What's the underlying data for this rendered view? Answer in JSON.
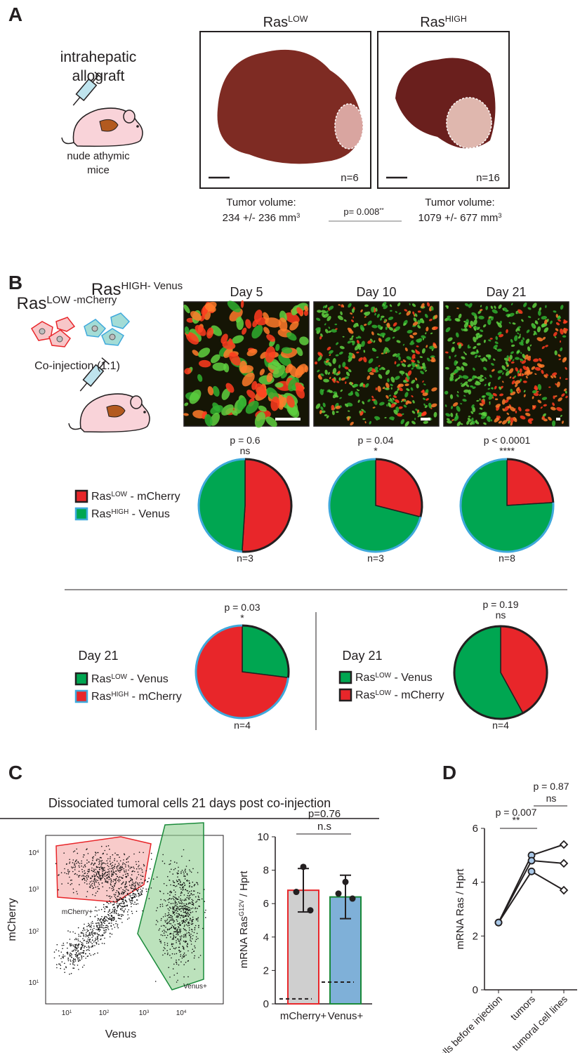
{
  "panel_labels": {
    "a": "A",
    "b": "B",
    "c": "C",
    "d": "D"
  },
  "panel_a": {
    "model": [
      "intrahepatic",
      "allograft"
    ],
    "mice": [
      "nude athymic",
      "mice"
    ],
    "groups": [
      {
        "name": "Ras",
        "sup": "LOW",
        "n": "n=6",
        "volume": "234 +/- 236 mm",
        "unit_sup": "3"
      },
      {
        "name": "Ras",
        "sup": "HIGH",
        "n": "n=16",
        "volume": "1079 +/- 677 mm",
        "unit_sup": "3"
      }
    ],
    "volume_label": "Tumor volume:",
    "p": "p= 0.008",
    "sig": "**"
  },
  "panel_b": {
    "cells": [
      {
        "name": "Ras",
        "sup": "LOW -mCherry"
      },
      {
        "name": "Ras",
        "sup": "HIGH- Venus"
      }
    ],
    "coinjection": "Co-injection (1:1)",
    "days": [
      "Day 5",
      "Day 10",
      "Day 21"
    ],
    "legend": [
      {
        "name": "Ras",
        "sup": "LOW",
        "suffix": " - mCherry",
        "color": "#e8262a",
        "outline": "#231f20"
      },
      {
        "name": "Ras",
        "sup": "HIGH",
        "suffix": " - Venus",
        "color": "#00a651",
        "outline": "#3fa9dc"
      }
    ],
    "bottom_left": {
      "day": "Day 21",
      "legend": [
        {
          "name": "Ras",
          "sup": "LOW",
          "suffix": " - Venus",
          "color": "#00a651",
          "outline": "#231f20"
        },
        {
          "name": "Ras",
          "sup": "HIGH",
          "suffix": " - mCherry",
          "color": "#e8262a",
          "outline": "#3fa9dc"
        }
      ]
    },
    "bottom_right": {
      "day": "Day 21",
      "legend": [
        {
          "name": "Ras",
          "sup": "LOW",
          "suffix": " - Venus",
          "color": "#00a651",
          "outline": "#231f20"
        },
        {
          "name": "Ras",
          "sup": "LOW",
          "suffix": " - mCherry",
          "color": "#e8262a",
          "outline": "#231f20"
        }
      ]
    }
  },
  "panel_c": {
    "title": "Dissociated tumoral cells 21 days post co-injection",
    "xlabel": "Venus",
    "ylabel": "mCherry",
    "xticks": [
      {
        "base": "10",
        "exp": "1"
      },
      {
        "base": "10",
        "exp": "2"
      },
      {
        "base": "10",
        "exp": "3"
      },
      {
        "base": "10",
        "exp": "4"
      }
    ],
    "yticks": [
      {
        "base": "10",
        "exp": "4"
      },
      {
        "base": "10",
        "exp": "3"
      },
      {
        "base": "10",
        "exp": "2"
      },
      {
        "base": "10",
        "exp": "1"
      }
    ],
    "gates": [
      "mCherry+",
      "Venus+"
    ]
  },
  "chart_data": [
    {
      "type": "pie",
      "p": "p = 0.6",
      "sig": "ns",
      "n": "n=3",
      "values": [
        51,
        49
      ],
      "colors": [
        "#e8262a",
        "#00a651"
      ],
      "outlines": [
        "#231f20",
        "#3fa9dc"
      ]
    },
    {
      "type": "pie",
      "p": "p = 0.04",
      "sig": "*",
      "n": "n=3",
      "values": [
        29,
        71
      ],
      "colors": [
        "#e8262a",
        "#00a651"
      ],
      "outlines": [
        "#231f20",
        "#3fa9dc"
      ]
    },
    {
      "type": "pie",
      "p": "p < 0.0001",
      "sig": "****",
      "n": "n=8",
      "values": [
        24,
        76
      ],
      "colors": [
        "#e8262a",
        "#00a651"
      ],
      "outlines": [
        "#231f20",
        "#3fa9dc"
      ]
    },
    {
      "type": "pie",
      "p": "p = 0.03",
      "sig": "*",
      "n": "n=4",
      "values": [
        27,
        73
      ],
      "colors": [
        "#00a651",
        "#e8262a"
      ],
      "outlines": [
        "#231f20",
        "#3fa9dc"
      ]
    },
    {
      "type": "pie",
      "p": "p = 0.19",
      "sig": "ns",
      "n": "n=4",
      "values": [
        42,
        58
      ],
      "colors": [
        "#e8262a",
        "#00a651"
      ],
      "outlines": [
        "#231f20",
        "#231f20"
      ]
    },
    {
      "type": "bar",
      "ylabel": "mRNA Ras",
      "ylabel_sup": "G12V",
      "ylabel_suffix": " / Hprt",
      "categories": [
        "mCherry+",
        "Venus+"
      ],
      "values": [
        6.8,
        6.4
      ],
      "errors": [
        1.3,
        1.3
      ],
      "points": [
        [
          8.2,
          6.7,
          5.6
        ],
        [
          7.3,
          6.6,
          6.3
        ]
      ],
      "baseline": [
        0.3,
        1.3
      ],
      "colors": [
        "#cfcfcf",
        "#7fb0d8"
      ],
      "edge_colors": [
        "#e8262a",
        "#1a8a3a"
      ],
      "ylim": [
        0,
        10
      ],
      "yticks": [
        0,
        2,
        4,
        6,
        8,
        10
      ],
      "p": "p=0.76",
      "sig": "n.s"
    },
    {
      "type": "line",
      "ylabel": "mRNA Ras / Hprt",
      "categories": [
        "cells before injection",
        "tumors",
        "tumoral cell lines"
      ],
      "series": [
        {
          "values": [
            2.5,
            5.0,
            5.4
          ]
        },
        {
          "values": [
            2.5,
            4.8,
            4.7
          ]
        },
        {
          "values": [
            2.5,
            4.4,
            3.7
          ]
        }
      ],
      "markers": [
        "circle",
        "circle",
        "diamond"
      ],
      "marker_fills": [
        "#a9c8e8",
        "#a9c8e8",
        "#ffffff"
      ],
      "color": "#231f20",
      "ylim": [
        0,
        6
      ],
      "yticks": [
        0,
        2,
        4,
        6
      ],
      "annotations": [
        {
          "p": "p = 0.007",
          "sig": "**"
        },
        {
          "p": "p = 0.87",
          "sig": "ns"
        }
      ]
    }
  ]
}
